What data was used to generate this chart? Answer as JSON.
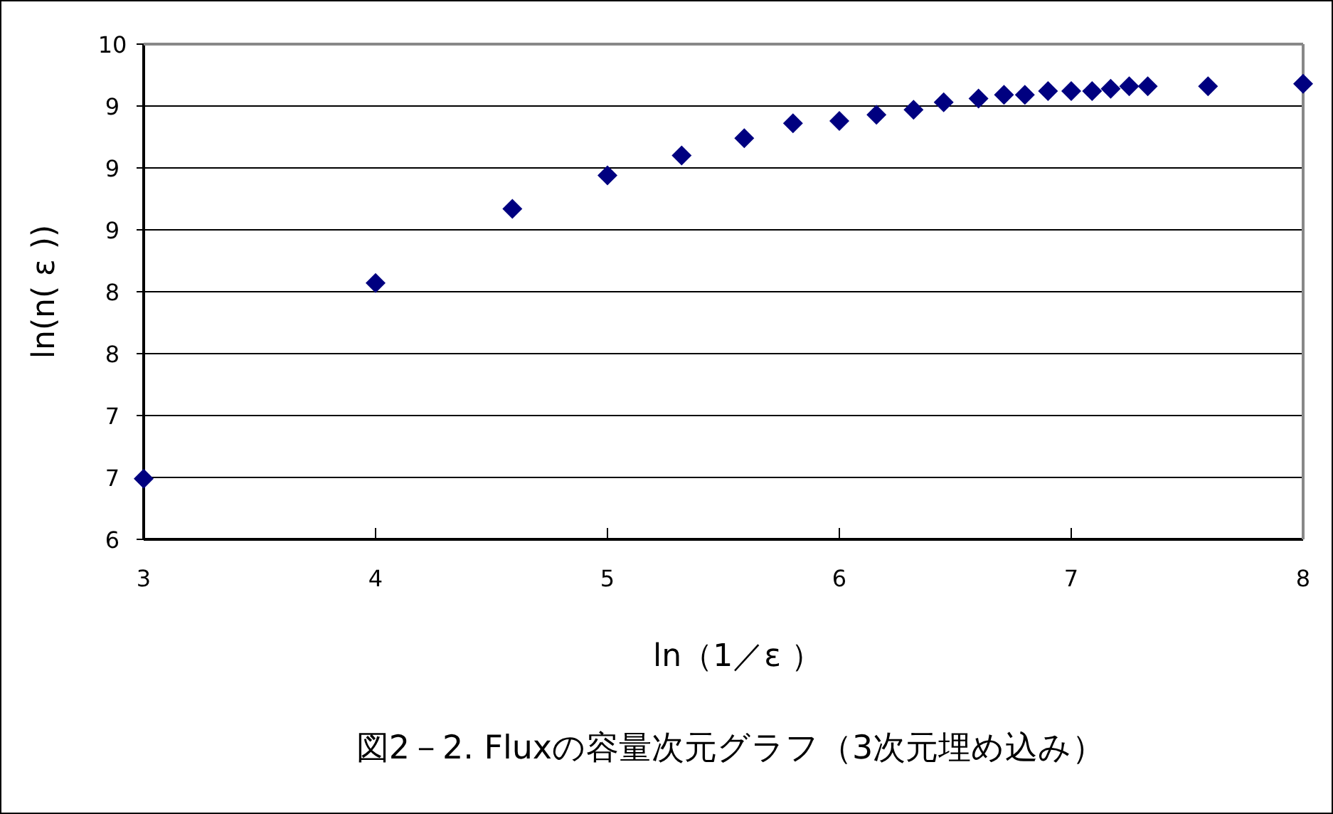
{
  "chart_data": {
    "type": "scatter",
    "title": "図2－2. Fluxの容量次元グラフ（3次元埋め込み）",
    "xlabel": "ln（1／ε ）",
    "ylabel": "ln(n( ε ))",
    "x": [
      3,
      4,
      4.59,
      5,
      5.32,
      5.59,
      5.8,
      6,
      6.16,
      6.32,
      6.45,
      6.6,
      6.71,
      6.8,
      6.9,
      7,
      7.09,
      7.17,
      7.25,
      7.33,
      7.59,
      8
    ],
    "series": [
      {
        "color": "#000080",
        "values": [
          6.49,
          8.07,
          8.67,
          8.94,
          9.1,
          9.24,
          9.36,
          9.38,
          9.43,
          9.47,
          9.53,
          9.56,
          9.59,
          9.59,
          9.62,
          9.62,
          9.62,
          9.64,
          9.66,
          9.66,
          9.66,
          9.68
        ]
      }
    ],
    "xlim": [
      3,
      8
    ],
    "xticks": [
      3,
      4,
      5,
      6,
      7,
      8
    ],
    "ylim": [
      6,
      10
    ],
    "yticks": [
      6,
      {
        "value": 6.5,
        "label": "7"
      },
      7,
      {
        "value": 7.5,
        "label": "8"
      },
      8,
      {
        "value": 8.5,
        "label": "9"
      },
      9,
      {
        "value": 9.5,
        "label": "9"
      },
      10
    ],
    "grid": "y",
    "marker": "diamond"
  }
}
